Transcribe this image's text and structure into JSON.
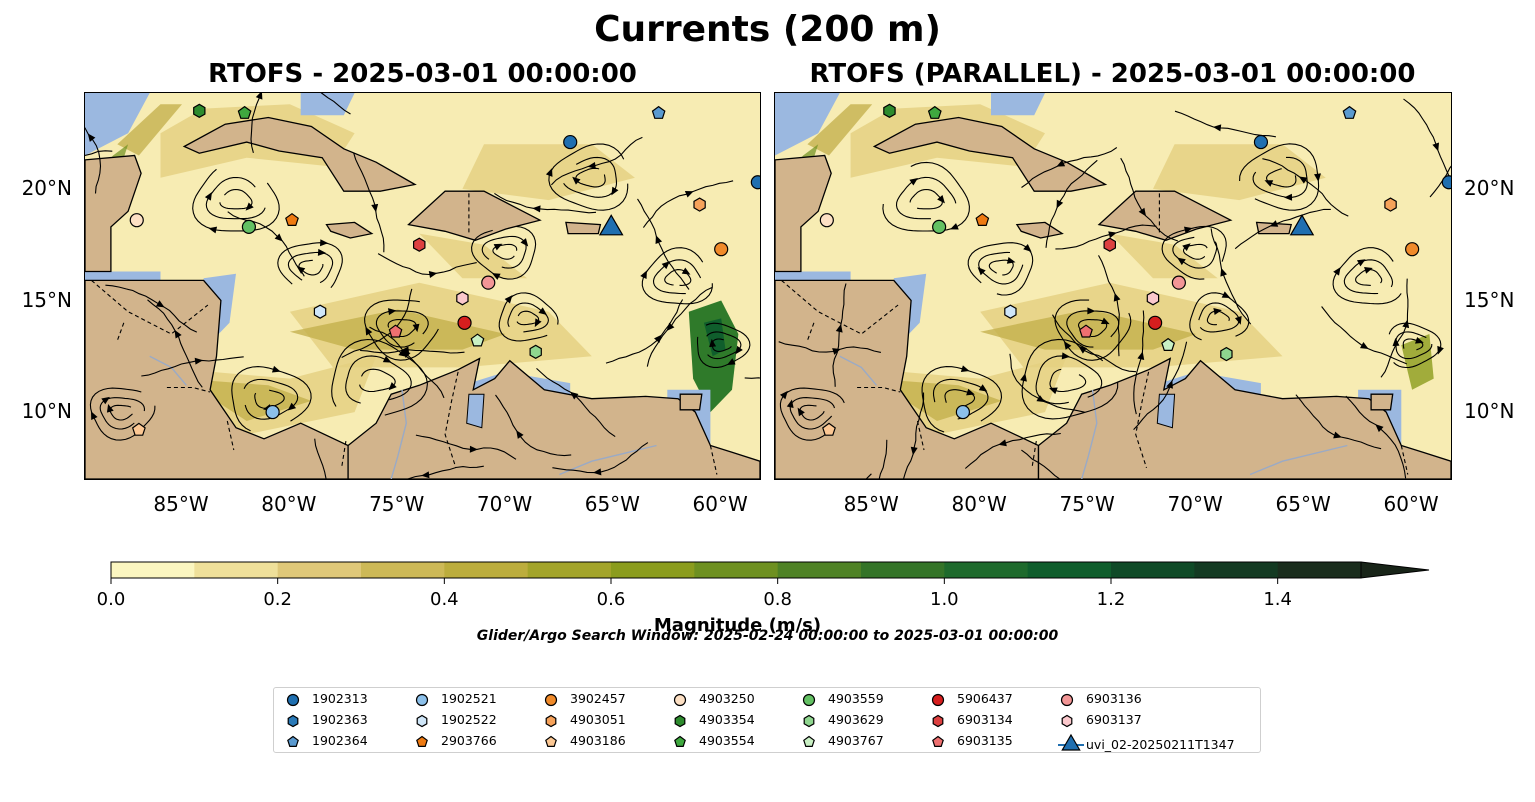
{
  "figure": {
    "title": "Currents (200 m)",
    "search_window": "Glider/Argo Search Window: 2025-02-24 00:00:00 to 2025-03-01 00:00:00"
  },
  "panels": [
    {
      "title": "RTOFS - 2025-03-01 00:00:00",
      "lon_range": [
        -89.5,
        -58.2
      ],
      "lat_range": [
        7.0,
        24.3
      ]
    },
    {
      "title": "RTOFS (PARALLEL) - 2025-03-01 00:00:00",
      "lon_range": [
        -89.5,
        -58.2
      ],
      "lat_range": [
        7.0,
        24.3
      ]
    }
  ],
  "axes": {
    "lon_ticks": [
      {
        "value": -85,
        "label": "85°W"
      },
      {
        "value": -80,
        "label": "80°W"
      },
      {
        "value": -75,
        "label": "75°W"
      },
      {
        "value": -70,
        "label": "70°W"
      },
      {
        "value": -65,
        "label": "65°W"
      },
      {
        "value": -60,
        "label": "60°W"
      }
    ],
    "lat_ticks": [
      {
        "value": 20,
        "label": "20°N"
      },
      {
        "value": 15,
        "label": "15°N"
      },
      {
        "value": 10,
        "label": "10°N"
      }
    ]
  },
  "colorbar": {
    "label": "Magnitude (m/s)",
    "min": 0.0,
    "max": 1.5,
    "extend": "max",
    "ticks": [
      {
        "value": 0.0,
        "label": "0.0"
      },
      {
        "value": 0.2,
        "label": "0.2"
      },
      {
        "value": 0.4,
        "label": "0.4"
      },
      {
        "value": 0.6,
        "label": "0.6"
      },
      {
        "value": 0.8,
        "label": "0.8"
      },
      {
        "value": 1.0,
        "label": "1.0"
      },
      {
        "value": 1.2,
        "label": "1.2"
      },
      {
        "value": 1.4,
        "label": "1.4"
      }
    ],
    "colors": [
      "#fbf6c0",
      "#efe09a",
      "#dfc879",
      "#cdb957",
      "#bcad3d",
      "#a3a42a",
      "#8b9c1d",
      "#6e9020",
      "#4f8225",
      "#347428",
      "#1e6a2c",
      "#0f5e2c",
      "#0f4a27",
      "#133a22",
      "#1a2d1d",
      "#182418"
    ]
  },
  "colors": {
    "land": "#d2b48c",
    "shallow": "#9bb8e0",
    "current_low": "#f7ecb3",
    "current_mid": "#c9b65a",
    "current_high": "#2f7a2a",
    "streamline": "#000000"
  },
  "legend": [
    {
      "id": "1902313",
      "marker": "circle",
      "color": "#1f6fb0"
    },
    {
      "id": "1902363",
      "marker": "hexagon",
      "color": "#2a7ab8"
    },
    {
      "id": "1902364",
      "marker": "pentagon",
      "color": "#5a9ad0"
    },
    {
      "id": "1902521",
      "marker": "circle",
      "color": "#8cc0ea"
    },
    {
      "id": "1902522",
      "marker": "hexagon",
      "color": "#cfe6f8"
    },
    {
      "id": "2903766",
      "marker": "pentagon",
      "color": "#ee7a12"
    },
    {
      "id": "3902457",
      "marker": "circle",
      "color": "#f08a2a"
    },
    {
      "id": "4903051",
      "marker": "hexagon",
      "color": "#f6a25a"
    },
    {
      "id": "4903186",
      "marker": "pentagon",
      "color": "#fcc894"
    },
    {
      "id": "4903250",
      "marker": "circle",
      "color": "#fde0c4"
    },
    {
      "id": "4903354",
      "marker": "hexagon",
      "color": "#2e8b2e"
    },
    {
      "id": "4903554",
      "marker": "pentagon",
      "color": "#3fa83f"
    },
    {
      "id": "4903559",
      "marker": "circle",
      "color": "#63c063"
    },
    {
      "id": "4903629",
      "marker": "hexagon",
      "color": "#8fd68f"
    },
    {
      "id": "4903767",
      "marker": "pentagon",
      "color": "#c9f0c4"
    },
    {
      "id": "5906437",
      "marker": "circle",
      "color": "#d61e1e"
    },
    {
      "id": "6903134",
      "marker": "hexagon",
      "color": "#dd4040"
    },
    {
      "id": "6903135",
      "marker": "pentagon",
      "color": "#ee7070"
    },
    {
      "id": "6903136",
      "marker": "circle",
      "color": "#f39696"
    },
    {
      "id": "6903137",
      "marker": "hexagon",
      "color": "#fbc8cc"
    },
    {
      "id": "uvi_02-20250211T1347",
      "marker": "triangle",
      "color": "#1f6fb0"
    }
  ],
  "floats_panel1": [
    {
      "id": "4903354",
      "lon": -84.2,
      "lat": 23.5
    },
    {
      "id": "4903554",
      "lon": -82.1,
      "lat": 23.4
    },
    {
      "id": "1902364",
      "lon": -62.9,
      "lat": 23.4
    },
    {
      "id": "1902313",
      "lon": -67.0,
      "lat": 22.1
    },
    {
      "id": "1902313",
      "lon": -58.3,
      "lat": 20.3
    },
    {
      "id": "4903250",
      "lon": -87.1,
      "lat": 18.6
    },
    {
      "id": "4903559",
      "lon": -81.9,
      "lat": 18.3
    },
    {
      "id": "2903766",
      "lon": -79.9,
      "lat": 18.6
    },
    {
      "id": "4903051",
      "lon": -61.0,
      "lat": 19.3
    },
    {
      "id": "6903134",
      "lon": -74.0,
      "lat": 17.5
    },
    {
      "id": "3902457",
      "lon": -60.0,
      "lat": 17.3
    },
    {
      "id": "6903136",
      "lon": -70.8,
      "lat": 15.8
    },
    {
      "id": "6903137",
      "lon": -72.0,
      "lat": 15.1
    },
    {
      "id": "1902522",
      "lon": -78.6,
      "lat": 14.5
    },
    {
      "id": "5906437",
      "lon": -71.9,
      "lat": 14.0
    },
    {
      "id": "6903135",
      "lon": -75.1,
      "lat": 13.6
    },
    {
      "id": "4903767",
      "lon": -71.3,
      "lat": 13.2
    },
    {
      "id": "4903629",
      "lon": -68.6,
      "lat": 12.7
    },
    {
      "id": "1902521",
      "lon": -80.8,
      "lat": 10.0
    },
    {
      "id": "4903186",
      "lon": -87.0,
      "lat": 9.2
    },
    {
      "id": "uvi_02-20250211T1347",
      "lon": -65.1,
      "lat": 18.1
    }
  ],
  "floats_panel2": [
    {
      "id": "4903354",
      "lon": -84.2,
      "lat": 23.5
    },
    {
      "id": "4903554",
      "lon": -82.1,
      "lat": 23.4
    },
    {
      "id": "1902364",
      "lon": -62.9,
      "lat": 23.4
    },
    {
      "id": "1902313",
      "lon": -67.0,
      "lat": 22.1
    },
    {
      "id": "1902313",
      "lon": -58.3,
      "lat": 20.3
    },
    {
      "id": "4903250",
      "lon": -87.1,
      "lat": 18.6
    },
    {
      "id": "4903559",
      "lon": -81.9,
      "lat": 18.3
    },
    {
      "id": "2903766",
      "lon": -79.9,
      "lat": 18.6
    },
    {
      "id": "4903051",
      "lon": -61.0,
      "lat": 19.3
    },
    {
      "id": "6903134",
      "lon": -74.0,
      "lat": 17.5
    },
    {
      "id": "3902457",
      "lon": -60.0,
      "lat": 17.3
    },
    {
      "id": "6903136",
      "lon": -70.8,
      "lat": 15.8
    },
    {
      "id": "6903137",
      "lon": -72.0,
      "lat": 15.1
    },
    {
      "id": "1902522",
      "lon": -78.6,
      "lat": 14.5
    },
    {
      "id": "5906437",
      "lon": -71.9,
      "lat": 14.0
    },
    {
      "id": "6903135",
      "lon": -75.1,
      "lat": 13.6
    },
    {
      "id": "4903767",
      "lon": -71.3,
      "lat": 13.0
    },
    {
      "id": "4903629",
      "lon": -68.6,
      "lat": 12.6
    },
    {
      "id": "1902521",
      "lon": -80.8,
      "lat": 10.0
    },
    {
      "id": "4903186",
      "lon": -87.0,
      "lat": 9.2
    },
    {
      "id": "uvi_02-20250211T1347",
      "lon": -65.1,
      "lat": 18.1
    }
  ]
}
